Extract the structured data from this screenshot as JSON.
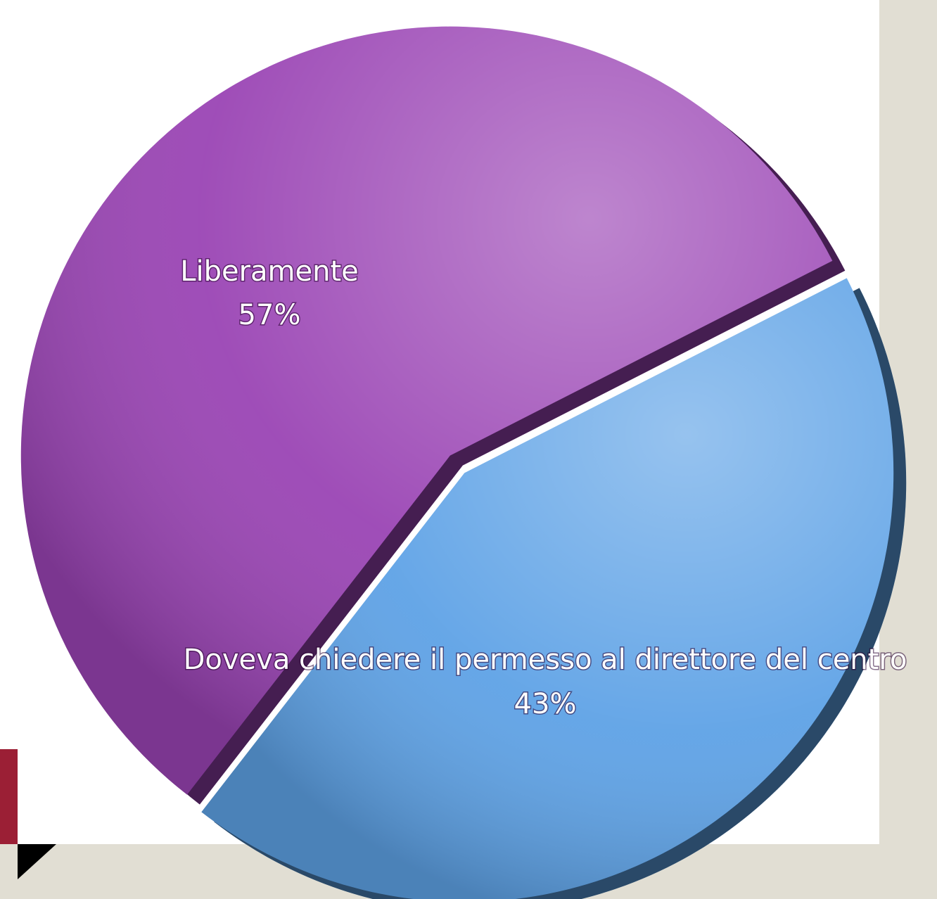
{
  "chart_data": {
    "type": "pie",
    "categories": [
      "Liberamente",
      "Doveva chiedere il permesso al direttore del centro"
    ],
    "values": [
      57,
      43
    ],
    "value_labels": [
      "57%",
      "43%"
    ],
    "colors": [
      "#9a44b4",
      "#5ea2e6"
    ]
  }
}
